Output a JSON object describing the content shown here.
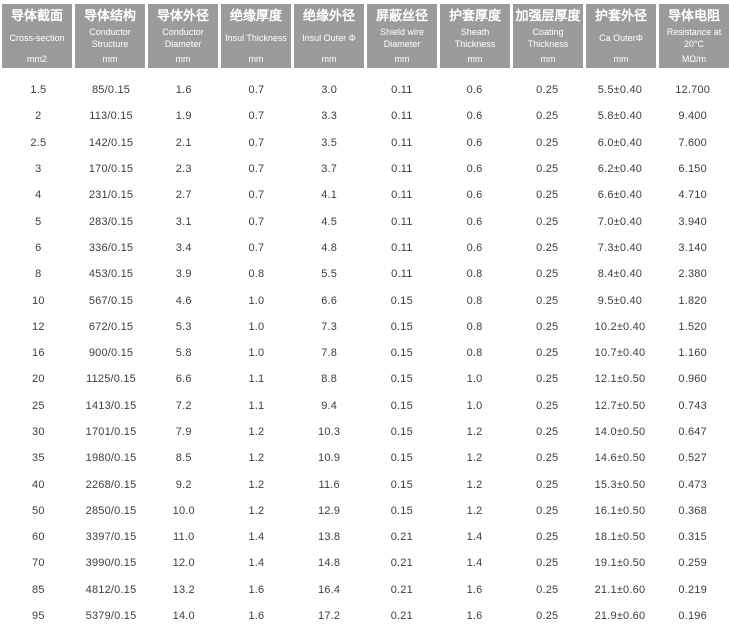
{
  "table": {
    "columns": [
      {
        "key": "cross-section",
        "zh": "导体截面",
        "en": "Cross-section",
        "unit": "mm2"
      },
      {
        "key": "conductor-structure",
        "zh": "导体结构",
        "en": "Conductor Structure",
        "unit": "mm"
      },
      {
        "key": "conductor-diameter",
        "zh": "导体外径",
        "en": "Conductor Diameter",
        "unit": "mm"
      },
      {
        "key": "insul-thickness",
        "zh": "绝缘厚度",
        "en": "Insul Thickness",
        "unit": "mm"
      },
      {
        "key": "insul-outer",
        "zh": "绝缘外径",
        "en": "Insul Outer Φ",
        "unit": "mm"
      },
      {
        "key": "shield-wire-diameter",
        "zh": "屏蔽丝径",
        "en": "Shield wire Diameter",
        "unit": "mm"
      },
      {
        "key": "sheath-thickness",
        "zh": "护套厚度",
        "en": "Sheath Thickness",
        "unit": "mm"
      },
      {
        "key": "coating-thickness",
        "zh": "加强层厚度",
        "en": "Coating Thickness",
        "unit": "mm"
      },
      {
        "key": "ca-outer",
        "zh": "护套外径",
        "en": "Ca OuterΦ",
        "unit": "mm"
      },
      {
        "key": "resistance",
        "zh": "导体电阻",
        "en": "Resistance at 20°C",
        "unit": "MΩ/m"
      }
    ],
    "rows": [
      [
        "1.5",
        "85/0.15",
        "1.6",
        "0.7",
        "3.0",
        "0.11",
        "0.6",
        "0.25",
        "5.5±0.40",
        "12.700"
      ],
      [
        "2",
        "113/0.15",
        "1.9",
        "0.7",
        "3.3",
        "0.11",
        "0.6",
        "0.25",
        "5.8±0.40",
        "9.400"
      ],
      [
        "2.5",
        "142/0.15",
        "2.1",
        "0.7",
        "3.5",
        "0.11",
        "0.6",
        "0.25",
        "6.0±0.40",
        "7.600"
      ],
      [
        "3",
        "170/0.15",
        "2.3",
        "0.7",
        "3.7",
        "0.11",
        "0.6",
        "0.25",
        "6.2±0.40",
        "6.150"
      ],
      [
        "4",
        "231/0.15",
        "2.7",
        "0.7",
        "4.1",
        "0.11",
        "0.6",
        "0.25",
        "6.6±0.40",
        "4.710"
      ],
      [
        "5",
        "283/0.15",
        "3.1",
        "0.7",
        "4.5",
        "0.11",
        "0.6",
        "0.25",
        "7.0±0.40",
        "3.940"
      ],
      [
        "6",
        "336/0.15",
        "3.4",
        "0.7",
        "4.8",
        "0.11",
        "0.6",
        "0.25",
        "7.3±0.40",
        "3.140"
      ],
      [
        "8",
        "453/0.15",
        "3.9",
        "0.8",
        "5.5",
        "0.11",
        "0.8",
        "0.25",
        "8.4±0.40",
        "2.380"
      ],
      [
        "10",
        "567/0.15",
        "4.6",
        "1.0",
        "6.6",
        "0.15",
        "0.8",
        "0.25",
        "9.5±0.40",
        "1.820"
      ],
      [
        "12",
        "672/0.15",
        "5.3",
        "1.0",
        "7.3",
        "0.15",
        "0.8",
        "0.25",
        "10.2±0.40",
        "1.520"
      ],
      [
        "16",
        "900/0.15",
        "5.8",
        "1.0",
        "7.8",
        "0.15",
        "0.8",
        "0.25",
        "10.7±0.40",
        "1.160"
      ],
      [
        "20",
        "1125/0.15",
        "6.6",
        "1.1",
        "8.8",
        "0.15",
        "1.0",
        "0.25",
        "12.1±0.50",
        "0.960"
      ],
      [
        "25",
        "1413/0.15",
        "7.2",
        "1.1",
        "9.4",
        "0.15",
        "1.0",
        "0.25",
        "12.7±0.50",
        "0.743"
      ],
      [
        "30",
        "1701/0.15",
        "7.9",
        "1.2",
        "10.3",
        "0.15",
        "1.2",
        "0.25",
        "14.0±0.50",
        "0.647"
      ],
      [
        "35",
        "1980/0.15",
        "8.5",
        "1.2",
        "10.9",
        "0.15",
        "1.2",
        "0.25",
        "14.6±0.50",
        "0.527"
      ],
      [
        "40",
        "2268/0.15",
        "9.2",
        "1.2",
        "11.6",
        "0.15",
        "1.2",
        "0.25",
        "15.3±0.50",
        "0.473"
      ],
      [
        "50",
        "2850/0.15",
        "10.0",
        "1.2",
        "12.9",
        "0.15",
        "1.2",
        "0.25",
        "16.1±0.50",
        "0.368"
      ],
      [
        "60",
        "3397/0.15",
        "11.0",
        "1.4",
        "13.8",
        "0.21",
        "1.4",
        "0.25",
        "18.1±0.50",
        "0.315"
      ],
      [
        "70",
        "3990/0.15",
        "12.0",
        "1.4",
        "14.8",
        "0.21",
        "1.4",
        "0.25",
        "19.1±0.50",
        "0.259"
      ],
      [
        "85",
        "4812/0.15",
        "13.2",
        "1.6",
        "16.4",
        "0.21",
        "1.6",
        "0.25",
        "21.1±0.60",
        "0.219"
      ],
      [
        "95",
        "5379/0.15",
        "14.0",
        "1.6",
        "17.2",
        "0.21",
        "1.6",
        "0.25",
        "21.9±0.60",
        "0.196"
      ]
    ],
    "colors": {
      "header_bg": "#9b9b9b",
      "header_text": "#ffffff",
      "body_text": "#3d3d3d",
      "page_bg": "#ffffff"
    }
  }
}
